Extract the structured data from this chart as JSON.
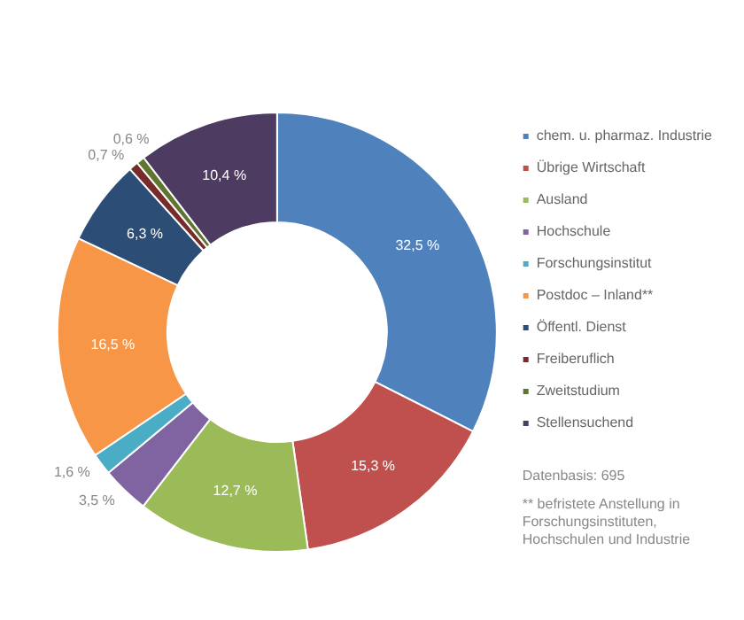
{
  "chart_data": {
    "type": "donut",
    "categories": [
      "chem. u. pharmaz. Industrie",
      "Übrige Wirtschaft",
      "Ausland",
      "Hochschule",
      "Forschungsinstitut",
      "Postdoc – Inland**",
      "Öffentl. Dienst",
      "Freiberuflich",
      "Zweitstudium",
      "Stellensuchend"
    ],
    "values": [
      32.5,
      15.3,
      12.7,
      3.5,
      1.6,
      16.5,
      6.3,
      0.7,
      0.6,
      10.4
    ],
    "colors": [
      "#4f81bd",
      "#c0504d",
      "#9bbb59",
      "#8064a2",
      "#4bacc6",
      "#f79646",
      "#2c4d75",
      "#772c2a",
      "#5f7530",
      "#4d3b62"
    ],
    "value_labels": [
      "32,5 %",
      "15,3 %",
      "12,7 %",
      "3,5 %",
      "1,6 %",
      "16,5 %",
      "6,3 %",
      "0,7 %",
      "0,6 %",
      "10,4 %"
    ],
    "legend": "right",
    "annotations": [
      "Datenbasis: 695",
      "** befristete Anstellung in Forschungsinstituten, Hochschulen und Industrie"
    ]
  }
}
